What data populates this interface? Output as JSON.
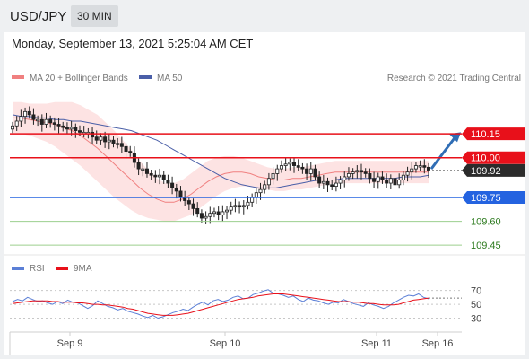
{
  "header": {
    "symbol": "USD/JPY",
    "timeframe": "30 MIN",
    "datetime": "Monday, September 13, 2021 5:25:04 AM CET"
  },
  "legend": {
    "ma20": "MA 20 + Bollinger Bands",
    "ma50": "MA 50",
    "credit": "Research © 2021 Trading Central",
    "rsi": "RSI",
    "rsi_ma": "9MA"
  },
  "colors": {
    "resistance": "#e8101a",
    "support": "#2463e0",
    "target": "#2c7a1e",
    "ma20": "#f08080",
    "ma50": "#4a5fa8",
    "band": "#fde3e3",
    "candle": "#222222",
    "arrow": "#2f6db5",
    "rsi": "#5b7fd6",
    "rsi_ma": "#e8101a"
  },
  "chart_data": [
    {
      "type": "candlestick",
      "y_range": [
        109.4,
        110.45
      ],
      "x_labels": [
        "Sep 9",
        "Sep 10",
        "Sep 11",
        "Sep 16"
      ],
      "levels": [
        {
          "value": 110.15,
          "label": "110.15",
          "kind": "resistance"
        },
        {
          "value": 110.0,
          "label": "110.00",
          "kind": "resistance"
        },
        {
          "value": 109.92,
          "label": "109.92",
          "kind": "last"
        },
        {
          "value": 109.75,
          "label": "109.75",
          "kind": "support"
        },
        {
          "value": 109.6,
          "label": "109.60",
          "kind": "target"
        },
        {
          "value": 109.45,
          "label": "109.45",
          "kind": "target"
        }
      ],
      "close": [
        110.2,
        110.23,
        110.26,
        110.29,
        110.27,
        110.24,
        110.24,
        110.21,
        110.24,
        110.22,
        110.21,
        110.2,
        110.19,
        110.18,
        110.19,
        110.17,
        110.16,
        110.16,
        110.16,
        110.13,
        110.11,
        110.13,
        110.1,
        110.11,
        110.09,
        110.09,
        110.07,
        110.04,
        110.03,
        109.97,
        109.93,
        109.93,
        109.9,
        109.89,
        109.88,
        109.89,
        109.86,
        109.84,
        109.81,
        109.79,
        109.75,
        109.73,
        109.71,
        109.68,
        109.65,
        109.62,
        109.63,
        109.65,
        109.66,
        109.64,
        109.66,
        109.67,
        109.69,
        109.7,
        109.69,
        109.7,
        109.72,
        109.75,
        109.78,
        109.8,
        109.83,
        109.87,
        109.9,
        109.93,
        109.95,
        109.96,
        109.97,
        109.95,
        109.94,
        109.93,
        109.9,
        109.93,
        109.88,
        109.84,
        109.85,
        109.83,
        109.82,
        109.84,
        109.86,
        109.88,
        109.9,
        109.91,
        109.92,
        109.91,
        109.9,
        109.87,
        109.85,
        109.88,
        109.86,
        109.84,
        109.87,
        109.83,
        109.86,
        109.89,
        109.91,
        109.93,
        109.95,
        109.95,
        109.94,
        109.92
      ],
      "ma50": [
        110.27,
        110.26,
        110.26,
        110.25,
        110.25,
        110.24,
        110.24,
        110.23,
        110.23,
        110.22,
        110.21,
        110.2,
        110.19,
        110.18,
        110.17,
        110.15,
        110.13,
        110.11,
        110.08,
        110.05,
        110.02,
        109.99,
        109.96,
        109.93,
        109.9,
        109.87,
        109.85,
        109.83,
        109.82,
        109.81,
        109.81,
        109.81,
        109.82,
        109.83,
        109.84,
        109.85,
        109.86,
        109.86,
        109.86,
        109.87,
        109.87,
        109.87,
        109.87,
        109.87,
        109.87,
        109.87,
        109.88,
        109.88,
        109.88,
        109.89
      ],
      "ma20": [
        110.25,
        110.25,
        110.24,
        110.23,
        110.22,
        110.21,
        110.19,
        110.17,
        110.14,
        110.1,
        110.06,
        110.01,
        109.96,
        109.91,
        109.86,
        109.81,
        109.77,
        109.74,
        109.72,
        109.72,
        109.74,
        109.77,
        109.81,
        109.85,
        109.88,
        109.9,
        109.91,
        109.91,
        109.9,
        109.88,
        109.87,
        109.86,
        109.86,
        109.87,
        109.87,
        109.88,
        109.89,
        109.9,
        109.91,
        109.91,
        109.91,
        109.91,
        109.91,
        109.91,
        109.91,
        109.91,
        109.91,
        109.91,
        109.91,
        109.91
      ],
      "band_width": [
        0.1,
        0.1,
        0.1,
        0.11,
        0.12,
        0.14,
        0.16,
        0.18,
        0.19,
        0.2,
        0.21,
        0.21,
        0.21,
        0.2,
        0.19,
        0.17,
        0.15,
        0.13,
        0.12,
        0.12,
        0.12,
        0.13,
        0.13,
        0.13,
        0.12,
        0.11,
        0.1,
        0.09,
        0.08,
        0.08,
        0.07,
        0.07,
        0.07,
        0.07,
        0.07,
        0.07,
        0.07,
        0.07,
        0.07,
        0.07,
        0.07,
        0.07,
        0.07,
        0.07,
        0.07,
        0.07,
        0.07,
        0.07,
        0.07,
        0.07
      ]
    },
    {
      "type": "line",
      "title": "RSI",
      "y_ticks": [
        70,
        50,
        30
      ],
      "y_range": [
        10,
        85
      ],
      "series": [
        {
          "name": "RSI",
          "values": [
            54,
            57,
            55,
            60,
            57,
            54,
            55,
            52,
            50,
            54,
            51,
            56,
            53,
            52,
            48,
            44,
            48,
            55,
            51,
            47,
            45,
            42,
            44,
            40,
            38,
            36,
            33,
            31,
            34,
            30,
            32,
            35,
            38,
            40,
            43,
            41,
            46,
            50,
            53,
            49,
            55,
            57,
            54,
            56,
            60,
            62,
            58,
            59,
            64,
            66,
            69,
            71,
            66,
            65,
            63,
            60,
            62,
            57,
            54,
            59,
            56,
            55,
            52,
            50,
            53,
            52,
            57,
            54,
            51,
            49,
            47,
            52,
            49,
            47,
            44,
            47,
            52,
            56,
            60,
            63,
            62,
            65,
            60,
            58
          ]
        },
        {
          "name": "9MA",
          "values": [
            51,
            52,
            53,
            54,
            55,
            55,
            55,
            55,
            54,
            54,
            53,
            53,
            53,
            52,
            52,
            51,
            50,
            50,
            49,
            49,
            48,
            47,
            46,
            44,
            43,
            41,
            39,
            37,
            36,
            35,
            34,
            34,
            34,
            35,
            36,
            37,
            39,
            41,
            43,
            45,
            47,
            49,
            51,
            53,
            55,
            57,
            58,
            59,
            60,
            62,
            63,
            64,
            65,
            65,
            65,
            64,
            63,
            62,
            61,
            60,
            59,
            58,
            57,
            56,
            55,
            54,
            54,
            54,
            53,
            53,
            52,
            51,
            51,
            50,
            49,
            49,
            49,
            50,
            52,
            54,
            56,
            57,
            58,
            59
          ]
        }
      ]
    }
  ]
}
